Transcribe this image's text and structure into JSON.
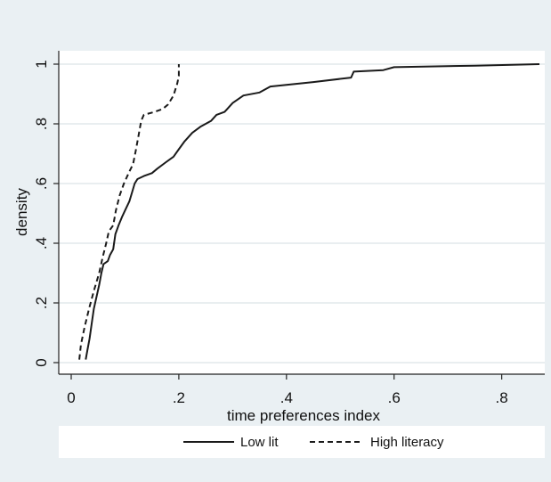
{
  "chart_data": {
    "type": "line",
    "title": "",
    "xlabel": "time preferences index",
    "ylabel": "density",
    "xlim": [
      0,
      0.88
    ],
    "ylim": [
      0,
      1
    ],
    "x_ticks": [
      0,
      0.2,
      0.4,
      0.6,
      0.8
    ],
    "x_tick_labels": [
      "0",
      ".2",
      ".4",
      ".6",
      ".8"
    ],
    "y_ticks": [
      0,
      0.2,
      0.4,
      0.6,
      0.8,
      1
    ],
    "y_tick_labels": [
      "0",
      ".2",
      ".4",
      ".6",
      ".8",
      "1"
    ],
    "grid": "horizontal",
    "legend_position": "bottom",
    "series": [
      {
        "name": "Low lit",
        "style": "solid",
        "color": "#1a1a1a",
        "points": [
          [
            0.027,
            0.01
          ],
          [
            0.03,
            0.04
          ],
          [
            0.034,
            0.08
          ],
          [
            0.038,
            0.13
          ],
          [
            0.042,
            0.18
          ],
          [
            0.047,
            0.22
          ],
          [
            0.052,
            0.26
          ],
          [
            0.056,
            0.3
          ],
          [
            0.06,
            0.33
          ],
          [
            0.068,
            0.34
          ],
          [
            0.072,
            0.36
          ],
          [
            0.078,
            0.38
          ],
          [
            0.082,
            0.43
          ],
          [
            0.088,
            0.46
          ],
          [
            0.095,
            0.49
          ],
          [
            0.1,
            0.51
          ],
          [
            0.108,
            0.54
          ],
          [
            0.113,
            0.57
          ],
          [
            0.118,
            0.6
          ],
          [
            0.123,
            0.615
          ],
          [
            0.135,
            0.625
          ],
          [
            0.15,
            0.635
          ],
          [
            0.16,
            0.65
          ],
          [
            0.175,
            0.67
          ],
          [
            0.19,
            0.69
          ],
          [
            0.2,
            0.715
          ],
          [
            0.21,
            0.74
          ],
          [
            0.225,
            0.77
          ],
          [
            0.24,
            0.79
          ],
          [
            0.26,
            0.81
          ],
          [
            0.27,
            0.83
          ],
          [
            0.285,
            0.84
          ],
          [
            0.29,
            0.85
          ],
          [
            0.3,
            0.87
          ],
          [
            0.32,
            0.895
          ],
          [
            0.35,
            0.905
          ],
          [
            0.37,
            0.925
          ],
          [
            0.45,
            0.94
          ],
          [
            0.52,
            0.955
          ],
          [
            0.525,
            0.975
          ],
          [
            0.58,
            0.98
          ],
          [
            0.6,
            0.99
          ],
          [
            0.75,
            0.995
          ],
          [
            0.87,
            1.0
          ]
        ]
      },
      {
        "name": "High literacy",
        "style": "dashed",
        "color": "#1a1a1a",
        "points": [
          [
            0.015,
            0.01
          ],
          [
            0.018,
            0.06
          ],
          [
            0.025,
            0.12
          ],
          [
            0.033,
            0.18
          ],
          [
            0.042,
            0.24
          ],
          [
            0.052,
            0.3
          ],
          [
            0.058,
            0.35
          ],
          [
            0.065,
            0.4
          ],
          [
            0.07,
            0.44
          ],
          [
            0.078,
            0.46
          ],
          [
            0.083,
            0.51
          ],
          [
            0.09,
            0.56
          ],
          [
            0.098,
            0.6
          ],
          [
            0.108,
            0.64
          ],
          [
            0.115,
            0.665
          ],
          [
            0.12,
            0.71
          ],
          [
            0.125,
            0.76
          ],
          [
            0.13,
            0.81
          ],
          [
            0.135,
            0.83
          ],
          [
            0.155,
            0.84
          ],
          [
            0.17,
            0.85
          ],
          [
            0.18,
            0.865
          ],
          [
            0.19,
            0.895
          ],
          [
            0.197,
            0.935
          ],
          [
            0.2,
            0.96
          ],
          [
            0.2,
            1.0
          ]
        ]
      }
    ]
  }
}
